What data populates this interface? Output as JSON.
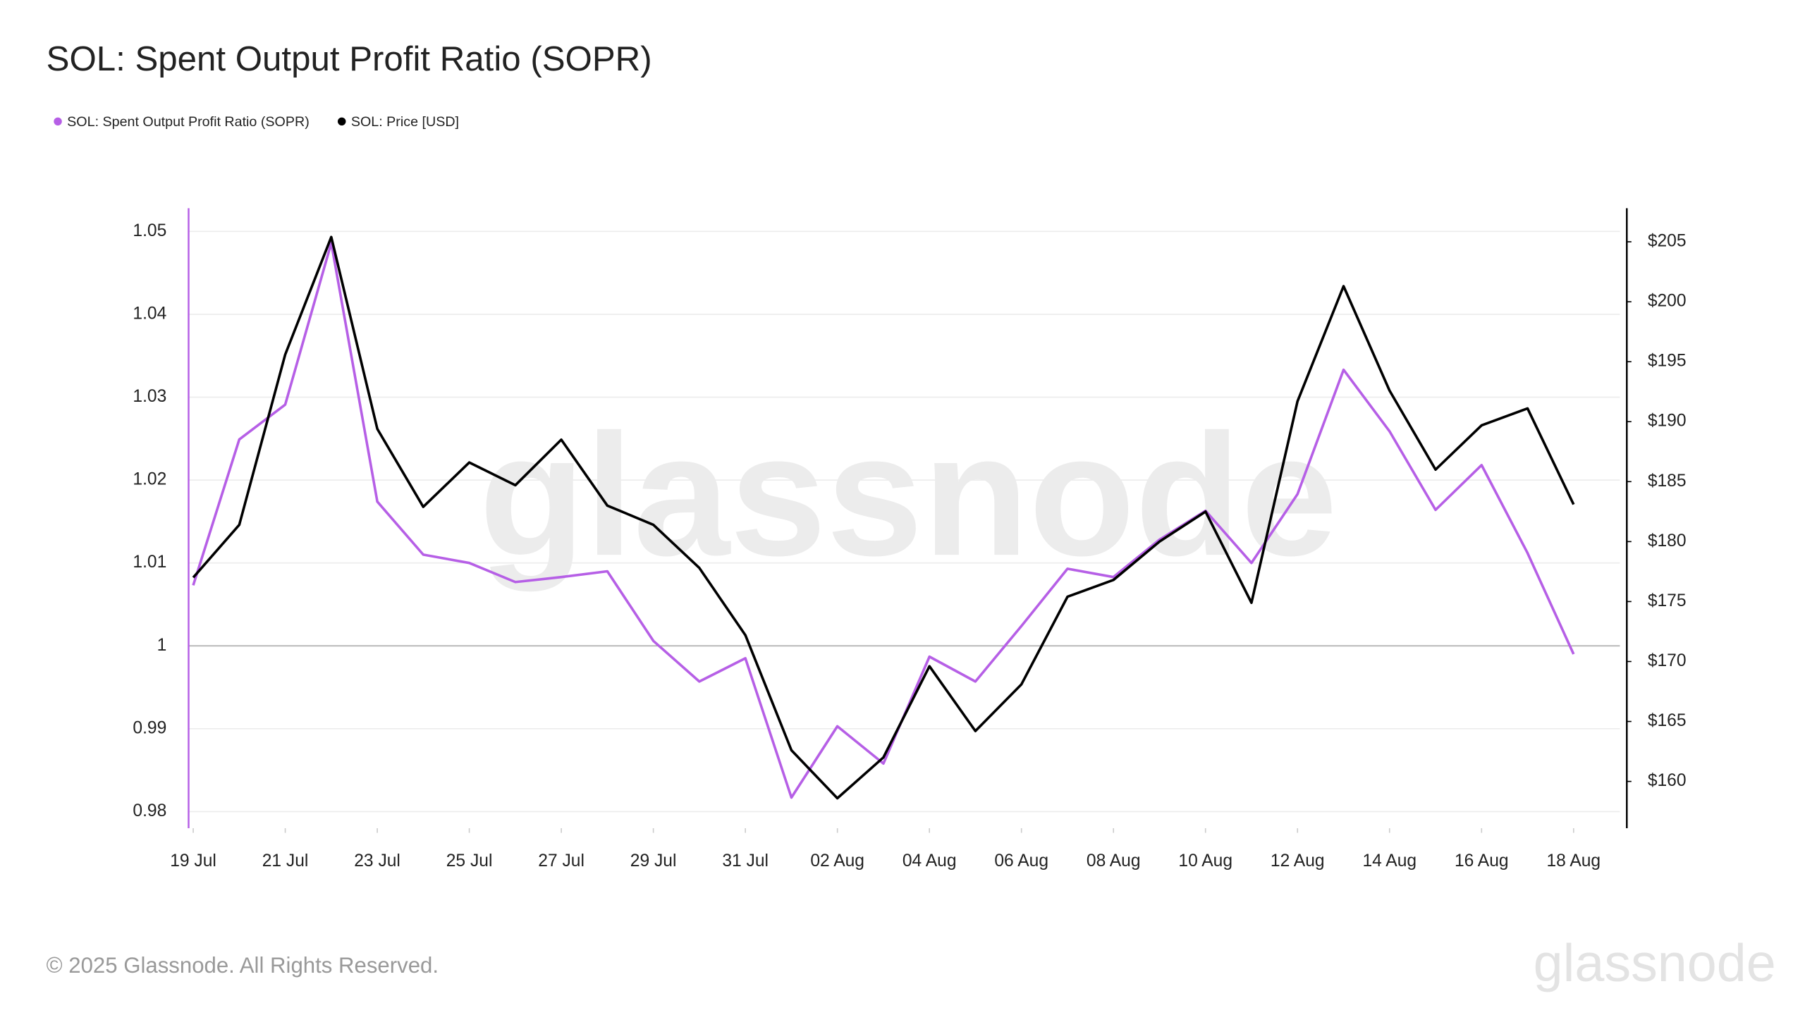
{
  "chart_data": {
    "type": "line",
    "title": "SOL: Spent Output Profit Ratio (SOPR)",
    "categories": [
      "19 Jul",
      null,
      "21 Jul",
      null,
      "23 Jul",
      null,
      "25 Jul",
      null,
      "27 Jul",
      null,
      "29 Jul",
      null,
      "31 Jul",
      null,
      "02 Aug",
      null,
      "04 Aug",
      null,
      "06 Aug",
      null,
      "08 Aug",
      null,
      "10 Aug",
      null,
      "12 Aug",
      null,
      "14 Aug",
      null,
      "16 Aug",
      null,
      "18 Aug"
    ],
    "series": [
      {
        "name": "SOL: Spent Output Profit Ratio (SOPR)",
        "color": "#b65fe6",
        "axis": "y",
        "values": [
          1.0073,
          1.0249,
          1.0291,
          1.0486,
          1.0174,
          1.011,
          1.01,
          1.0077,
          1.0083,
          1.009,
          1.0006,
          0.9957,
          0.9985,
          0.9817,
          0.9903,
          0.9858,
          0.9987,
          0.9957,
          1.0024,
          1.0093,
          1.0083,
          1.0128,
          1.0163,
          1.01,
          1.0183,
          1.0333,
          1.0259,
          1.0164,
          1.0218,
          1.0112,
          0.999
        ]
      },
      {
        "name": "SOL: Price [USD]",
        "color": "#000000",
        "axis": "y2",
        "values": [
          177.0,
          181.4,
          195.6,
          205.4,
          189.4,
          182.9,
          186.6,
          184.7,
          188.5,
          183.0,
          181.4,
          177.8,
          172.2,
          162.6,
          158.6,
          162.0,
          169.6,
          164.2,
          168.1,
          175.4,
          176.8,
          180.0,
          182.5,
          174.9,
          191.7,
          201.3,
          192.6,
          186.0,
          189.7,
          191.1,
          183.1
        ]
      }
    ],
    "ylim": [
      0.978,
      1.0528
    ],
    "yticks": [
      0.98,
      0.99,
      1,
      1.01,
      1.02,
      1.03,
      1.04,
      1.05
    ],
    "y2lim": [
      156.1,
      207.8
    ],
    "y2ticks": [
      {
        "value": 160,
        "label": "$160"
      },
      {
        "value": 165,
        "label": "$165"
      },
      {
        "value": 170,
        "label": "$170"
      },
      {
        "value": 175,
        "label": "$175"
      },
      {
        "value": 180,
        "label": "$180"
      },
      {
        "value": 185,
        "label": "$185"
      },
      {
        "value": 190,
        "label": "$190"
      },
      {
        "value": 195,
        "label": "$195"
      },
      {
        "value": 200,
        "label": "$200"
      },
      {
        "value": 205,
        "label": "$205"
      }
    ],
    "grid": true,
    "legend": "top-left",
    "watermark": "glassnode",
    "footer": "© 2025 Glassnode. All Rights Reserved.",
    "logo": "glassnode"
  }
}
